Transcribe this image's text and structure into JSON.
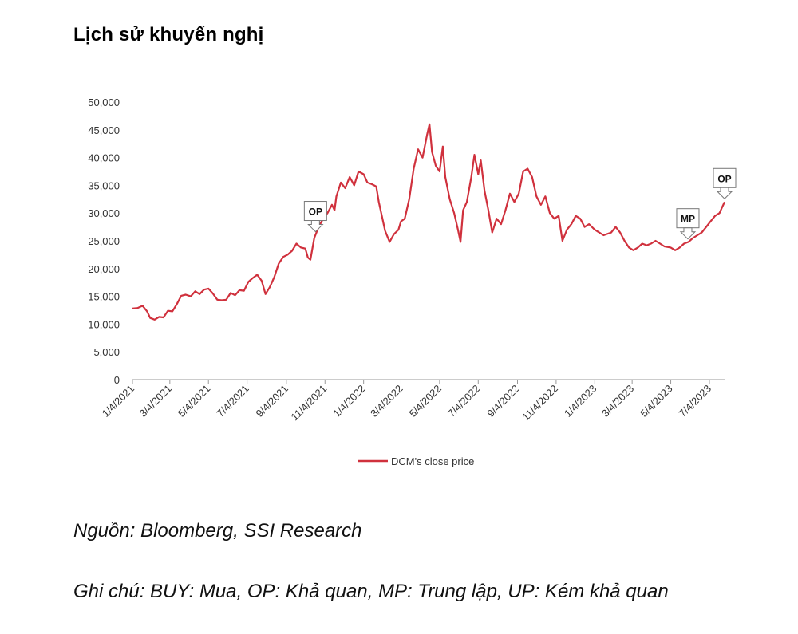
{
  "title": "Lịch sử khuyến nghị",
  "source": "Nguồn: Bloomberg, SSI Research",
  "remark": "Ghi chú: BUY: Mua, OP: Khả quan, MP: Trung lập, UP: Kém khả quan",
  "chart_data": {
    "type": "line",
    "title": "",
    "xlabel": "",
    "ylabel": "",
    "ylim": [
      0,
      50000
    ],
    "yticks": [
      0,
      5000,
      10000,
      15000,
      20000,
      25000,
      30000,
      35000,
      40000,
      45000,
      50000
    ],
    "ytick_labels": [
      "0",
      "5,000",
      "10,000",
      "15,000",
      "20,000",
      "25,000",
      "30,000",
      "35,000",
      "40,000",
      "45,000",
      "50,000"
    ],
    "xlim": [
      "2021-01-04",
      "2023-07-28"
    ],
    "xticks": [
      "2021-01-04",
      "2021-03-04",
      "2021-05-04",
      "2021-07-04",
      "2021-09-04",
      "2021-11-04",
      "2022-01-04",
      "2022-03-04",
      "2022-05-04",
      "2022-07-04",
      "2022-09-04",
      "2022-11-04",
      "2023-01-04",
      "2023-03-04",
      "2023-05-04",
      "2023-07-04"
    ],
    "xtick_labels": [
      "1/4/2021",
      "3/4/2021",
      "5/4/2021",
      "7/4/2021",
      "9/4/2021",
      "11/4/2021",
      "1/4/2022",
      "3/4/2022",
      "5/4/2022",
      "7/4/2022",
      "9/4/2022",
      "11/4/2022",
      "1/4/2023",
      "3/4/2023",
      "5/4/2023",
      "7/4/2023"
    ],
    "grid": false,
    "legend_position": "bottom",
    "color": "#d0313d",
    "series": [
      {
        "name": "DCM's close price",
        "points": [
          [
            "2021-01-04",
            12800
          ],
          [
            "2021-01-12",
            12900
          ],
          [
            "2021-01-20",
            13300
          ],
          [
            "2021-01-27",
            12300
          ],
          [
            "2021-02-01",
            11100
          ],
          [
            "2021-02-08",
            10800
          ],
          [
            "2021-02-15",
            11300
          ],
          [
            "2021-02-22",
            11200
          ],
          [
            "2021-03-01",
            12400
          ],
          [
            "2021-03-08",
            12300
          ],
          [
            "2021-03-15",
            13600
          ],
          [
            "2021-03-22",
            15100
          ],
          [
            "2021-03-29",
            15300
          ],
          [
            "2021-04-06",
            15000
          ],
          [
            "2021-04-13",
            15900
          ],
          [
            "2021-04-20",
            15400
          ],
          [
            "2021-04-27",
            16200
          ],
          [
            "2021-05-04",
            16400
          ],
          [
            "2021-05-11",
            15500
          ],
          [
            "2021-05-18",
            14400
          ],
          [
            "2021-05-25",
            14300
          ],
          [
            "2021-06-01",
            14400
          ],
          [
            "2021-06-08",
            15600
          ],
          [
            "2021-06-15",
            15200
          ],
          [
            "2021-06-22",
            16100
          ],
          [
            "2021-06-29",
            16000
          ],
          [
            "2021-07-06",
            17600
          ],
          [
            "2021-07-13",
            18300
          ],
          [
            "2021-07-20",
            18900
          ],
          [
            "2021-07-27",
            17800
          ],
          [
            "2021-08-02",
            15400
          ],
          [
            "2021-08-09",
            16700
          ],
          [
            "2021-08-16",
            18500
          ],
          [
            "2021-08-23",
            20900
          ],
          [
            "2021-08-30",
            22100
          ],
          [
            "2021-09-06",
            22500
          ],
          [
            "2021-09-13",
            23200
          ],
          [
            "2021-09-20",
            24500
          ],
          [
            "2021-09-27",
            23800
          ],
          [
            "2021-10-04",
            23600
          ],
          [
            "2021-10-08",
            22000
          ],
          [
            "2021-10-12",
            21600
          ],
          [
            "2021-10-18",
            25500
          ],
          [
            "2021-10-25",
            27500
          ],
          [
            "2021-11-01",
            29000
          ],
          [
            "2021-11-08",
            30000
          ],
          [
            "2021-11-15",
            31500
          ],
          [
            "2021-11-19",
            30500
          ],
          [
            "2021-11-22",
            33000
          ],
          [
            "2021-11-29",
            35500
          ],
          [
            "2021-12-06",
            34500
          ],
          [
            "2021-12-13",
            36500
          ],
          [
            "2021-12-20",
            35000
          ],
          [
            "2021-12-27",
            37500
          ],
          [
            "2022-01-04",
            37000
          ],
          [
            "2022-01-10",
            35500
          ],
          [
            "2022-01-17",
            35200
          ],
          [
            "2022-01-24",
            34800
          ],
          [
            "2022-01-28",
            32000
          ],
          [
            "2022-02-07",
            26800
          ],
          [
            "2022-02-14",
            24800
          ],
          [
            "2022-02-21",
            26200
          ],
          [
            "2022-02-28",
            27000
          ],
          [
            "2022-03-04",
            28500
          ],
          [
            "2022-03-10",
            29000
          ],
          [
            "2022-03-17",
            32500
          ],
          [
            "2022-03-24",
            38000
          ],
          [
            "2022-03-31",
            41500
          ],
          [
            "2022-04-07",
            40000
          ],
          [
            "2022-04-14",
            44000
          ],
          [
            "2022-04-18",
            46000
          ],
          [
            "2022-04-22",
            41000
          ],
          [
            "2022-04-28",
            38500
          ],
          [
            "2022-05-04",
            37500
          ],
          [
            "2022-05-09",
            42000
          ],
          [
            "2022-05-13",
            36500
          ],
          [
            "2022-05-20",
            32500
          ],
          [
            "2022-05-27",
            30000
          ],
          [
            "2022-06-02",
            27000
          ],
          [
            "2022-06-06",
            24800
          ],
          [
            "2022-06-10",
            30500
          ],
          [
            "2022-06-16",
            32000
          ],
          [
            "2022-06-23",
            36500
          ],
          [
            "2022-06-28",
            40500
          ],
          [
            "2022-07-04",
            37000
          ],
          [
            "2022-07-08",
            39500
          ],
          [
            "2022-07-14",
            34000
          ],
          [
            "2022-07-20",
            30500
          ],
          [
            "2022-07-26",
            26500
          ],
          [
            "2022-08-02",
            29000
          ],
          [
            "2022-08-09",
            28000
          ],
          [
            "2022-08-16",
            30500
          ],
          [
            "2022-08-23",
            33500
          ],
          [
            "2022-08-30",
            32000
          ],
          [
            "2022-09-06",
            33500
          ],
          [
            "2022-09-13",
            37500
          ],
          [
            "2022-09-20",
            38000
          ],
          [
            "2022-09-27",
            36500
          ],
          [
            "2022-10-04",
            33000
          ],
          [
            "2022-10-11",
            31500
          ],
          [
            "2022-10-18",
            33000
          ],
          [
            "2022-10-25",
            30000
          ],
          [
            "2022-11-01",
            29000
          ],
          [
            "2022-11-08",
            29500
          ],
          [
            "2022-11-14",
            25000
          ],
          [
            "2022-11-21",
            27000
          ],
          [
            "2022-11-28",
            28000
          ],
          [
            "2022-12-05",
            29500
          ],
          [
            "2022-12-12",
            29000
          ],
          [
            "2022-12-19",
            27500
          ],
          [
            "2022-12-26",
            28000
          ],
          [
            "2023-01-04",
            27000
          ],
          [
            "2023-01-11",
            26500
          ],
          [
            "2023-01-18",
            26000
          ],
          [
            "2023-01-30",
            26500
          ],
          [
            "2023-02-06",
            27500
          ],
          [
            "2023-02-13",
            26500
          ],
          [
            "2023-02-20",
            25000
          ],
          [
            "2023-02-27",
            23800
          ],
          [
            "2023-03-06",
            23300
          ],
          [
            "2023-03-13",
            23800
          ],
          [
            "2023-03-20",
            24500
          ],
          [
            "2023-03-27",
            24200
          ],
          [
            "2023-04-03",
            24500
          ],
          [
            "2023-04-10",
            25000
          ],
          [
            "2023-04-17",
            24500
          ],
          [
            "2023-04-24",
            24000
          ],
          [
            "2023-05-04",
            23800
          ],
          [
            "2023-05-11",
            23300
          ],
          [
            "2023-05-18",
            23800
          ],
          [
            "2023-05-25",
            24500
          ],
          [
            "2023-06-01",
            24800
          ],
          [
            "2023-06-08",
            25500
          ],
          [
            "2023-06-15",
            26000
          ],
          [
            "2023-06-22",
            26500
          ],
          [
            "2023-06-29",
            27500
          ],
          [
            "2023-07-06",
            28500
          ],
          [
            "2023-07-13",
            29500
          ],
          [
            "2023-07-20",
            30000
          ],
          [
            "2023-07-24",
            31000
          ],
          [
            "2023-07-28",
            32000
          ]
        ]
      }
    ],
    "annotations": [
      {
        "label": "OP",
        "date": "2021-10-20"
      },
      {
        "label": "MP",
        "date": "2023-05-31"
      },
      {
        "label": "OP",
        "date": "2023-07-28"
      }
    ]
  }
}
